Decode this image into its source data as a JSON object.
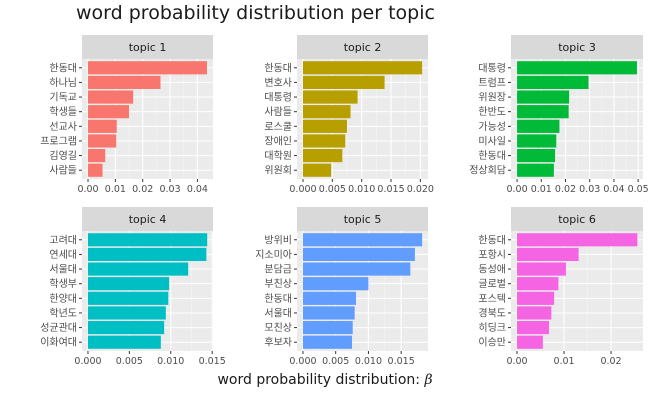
{
  "title": "word probability distribution per topic",
  "xlabel_text": "word probability distribution:",
  "xlabel_symbol": "β",
  "chart_data": [
    {
      "type": "bar",
      "orientation": "horizontal",
      "strip": "topic 1",
      "color": "#F8766D",
      "categories": [
        "한동대",
        "하나님",
        "기독교",
        "학생들",
        "선교사",
        "프로그램",
        "김영길",
        "사람들"
      ],
      "values": [
        0.0435,
        0.0265,
        0.0165,
        0.015,
        0.0105,
        0.0103,
        0.0063,
        0.0053
      ],
      "xlim": [
        -0.0022,
        0.0457
      ],
      "xticks": [
        0.0,
        0.01,
        0.02,
        0.03,
        0.04
      ],
      "xtick_labels": [
        "0.00",
        "0.01",
        "0.02",
        "0.03",
        "0.04"
      ]
    },
    {
      "type": "bar",
      "orientation": "horizontal",
      "strip": "topic 2",
      "color": "#B79F00",
      "categories": [
        "한동대",
        "변호사",
        "대통령",
        "사람들",
        "로스쿨",
        "장애인",
        "대학원",
        "위원회"
      ],
      "values": [
        0.0203,
        0.0139,
        0.0093,
        0.0081,
        0.0075,
        0.0072,
        0.0067,
        0.0048
      ],
      "xlim": [
        -0.00102,
        0.0213
      ],
      "xticks": [
        0.0,
        0.005,
        0.01,
        0.015,
        0.02
      ],
      "xtick_labels": [
        "0.000",
        "0.005",
        "0.010",
        "0.015",
        "0.020"
      ]
    },
    {
      "type": "bar",
      "orientation": "horizontal",
      "strip": "topic 3",
      "color": "#00BA38",
      "categories": [
        "대통령",
        "트럼프",
        "위원장",
        "한반도",
        "가능성",
        "미사일",
        "한동대",
        "정상회담"
      ],
      "values": [
        0.0495,
        0.0295,
        0.0215,
        0.0213,
        0.0175,
        0.0162,
        0.0157,
        0.0152
      ],
      "xlim": [
        -0.0025,
        0.052
      ],
      "xticks": [
        0.0,
        0.01,
        0.02,
        0.03,
        0.04,
        0.05
      ],
      "xtick_labels": [
        "0.00",
        "0.01",
        "0.02",
        "0.03",
        "0.04",
        "0.05"
      ]
    },
    {
      "type": "bar",
      "orientation": "horizontal",
      "strip": "topic 4",
      "color": "#00BFC4",
      "categories": [
        "고려대",
        "연세대",
        "서울대",
        "학생부",
        "한양대",
        "학년도",
        "성균관대",
        "이화여대"
      ],
      "values": [
        0.0144,
        0.0143,
        0.0121,
        0.0098,
        0.0097,
        0.0094,
        0.0092,
        0.0088
      ],
      "xlim": [
        -0.00072,
        0.0151
      ],
      "xticks": [
        0.0,
        0.005,
        0.01,
        0.015
      ],
      "xtick_labels": [
        "0.000",
        "0.005",
        "0.010",
        "0.015"
      ]
    },
    {
      "type": "bar",
      "orientation": "horizontal",
      "strip": "topic 5",
      "color": "#619CFF",
      "categories": [
        "방위비",
        "지소미아",
        "분담금",
        "부친상",
        "한동대",
        "서울대",
        "모친상",
        "후보자"
      ],
      "values": [
        0.0182,
        0.0171,
        0.0164,
        0.01,
        0.0081,
        0.0079,
        0.0076,
        0.0075
      ],
      "xlim": [
        -0.00091,
        0.0191
      ],
      "xticks": [
        0.0,
        0.005,
        0.01,
        0.015
      ],
      "xtick_labels": [
        "0.000",
        "0.005",
        "0.010",
        "0.015"
      ]
    },
    {
      "type": "bar",
      "orientation": "horizontal",
      "strip": "topic 6",
      "color": "#F564E3",
      "categories": [
        "한동대",
        "포항시",
        "동성애",
        "글로벌",
        "포스텍",
        "경북도",
        "히딩크",
        "이승만"
      ],
      "values": [
        0.0256,
        0.0131,
        0.0104,
        0.0088,
        0.0079,
        0.0073,
        0.0068,
        0.0055
      ],
      "xlim": [
        -0.00128,
        0.0268
      ],
      "xticks": [
        0.0,
        0.01,
        0.02
      ],
      "xtick_labels": [
        "0.00",
        "0.01",
        "0.02"
      ]
    }
  ]
}
